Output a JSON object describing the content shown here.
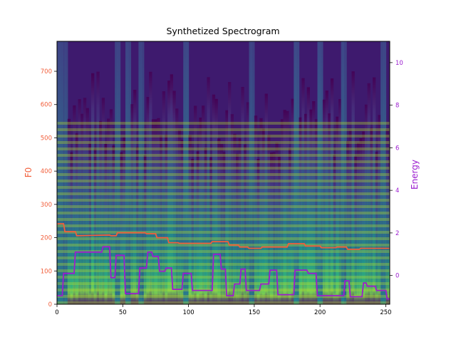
{
  "chart_data": {
    "type": "heatmap",
    "title": "Synthetized Spectrogram",
    "colormap": "viridis",
    "x_axis": {
      "ticks": [
        0,
        50,
        100,
        150,
        200,
        250
      ],
      "range": [
        0,
        253
      ]
    },
    "left_axis": {
      "label": "F0",
      "color": "#f25e3a",
      "ticks": [
        0,
        100,
        200,
        300,
        400,
        500,
        600,
        700
      ],
      "range": [
        0,
        790
      ]
    },
    "right_axis": {
      "label": "Energy",
      "color": "#9b1ccf",
      "ticks": [
        0,
        2,
        4,
        6,
        8,
        10
      ],
      "range": [
        -1.35,
        11.0
      ]
    },
    "series": [
      {
        "name": "F0",
        "axis": "left",
        "color": "#f25e3a",
        "x": [
          0,
          5,
          6,
          14,
          15,
          40,
          41,
          45,
          46,
          67,
          68,
          75,
          76,
          84,
          85,
          92,
          93,
          117,
          118,
          130,
          131,
          138,
          139,
          145,
          146,
          155,
          156,
          175,
          176,
          188,
          189,
          200,
          201,
          212,
          213,
          220,
          221,
          230,
          231,
          253
        ],
        "values": [
          242,
          242,
          218,
          218,
          206,
          208,
          206,
          206,
          215,
          215,
          212,
          212,
          200,
          200,
          185,
          185,
          183,
          183,
          188,
          188,
          178,
          178,
          172,
          172,
          168,
          168,
          172,
          172,
          182,
          182,
          175,
          175,
          170,
          170,
          172,
          172,
          165,
          165,
          168,
          168
        ]
      },
      {
        "name": "Energy",
        "axis": "right",
        "color": "#9b1ccf",
        "x": [
          0,
          4,
          5,
          13,
          14,
          34,
          35,
          40,
          41,
          44,
          45,
          51,
          52,
          62,
          63,
          68,
          69,
          72,
          73,
          77,
          78,
          82,
          83,
          87,
          88,
          95,
          96,
          102,
          103,
          118,
          119,
          124,
          125,
          128,
          129,
          134,
          135,
          139,
          140,
          143,
          144,
          154,
          155,
          161,
          162,
          167,
          168,
          180,
          181,
          186,
          187,
          190,
          191,
          197,
          198,
          218,
          219,
          222,
          223,
          232,
          233,
          235,
          236,
          242,
          243,
          250,
          251,
          253
        ],
        "values": [
          -0.95,
          -0.95,
          0.1,
          0.1,
          1.1,
          1.1,
          1.35,
          1.35,
          -0.1,
          -0.1,
          0.95,
          0.95,
          -0.85,
          -0.85,
          0.35,
          0.35,
          1.1,
          1.1,
          0.9,
          0.9,
          0.2,
          0.2,
          0.35,
          0.35,
          -0.65,
          -0.65,
          0.1,
          0.1,
          -0.7,
          -0.7,
          1.0,
          1.0,
          0.3,
          0.3,
          -0.95,
          -0.95,
          -0.4,
          -0.4,
          0.3,
          0.3,
          -0.7,
          -0.7,
          -0.4,
          -0.4,
          0.25,
          0.25,
          -0.9,
          -0.9,
          0.25,
          0.25,
          0.25,
          0.25,
          0.1,
          0.1,
          -0.95,
          -0.95,
          -0.25,
          -0.25,
          -1.0,
          -1.0,
          -0.35,
          -0.35,
          -0.5,
          -0.5,
          -0.7,
          -0.7,
          -1.1,
          -1.1
        ]
      }
    ]
  }
}
